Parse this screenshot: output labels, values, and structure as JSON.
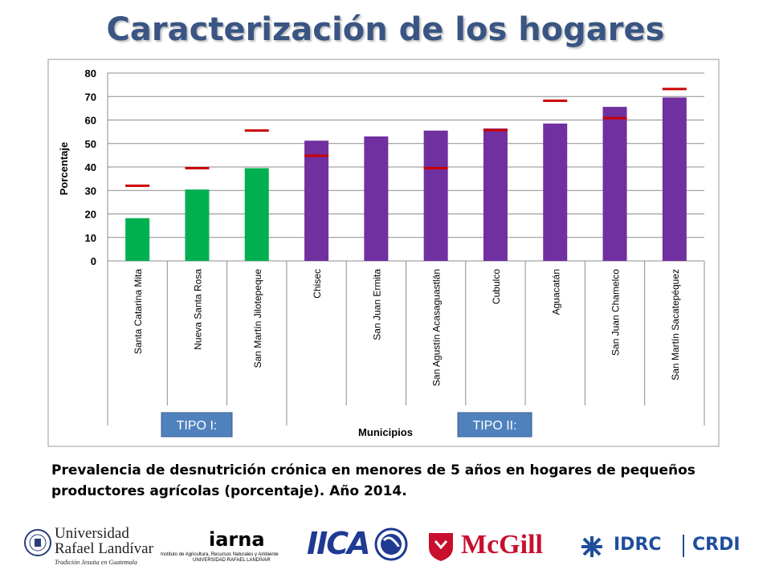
{
  "slide": {
    "title": "Caracterización de los hogares",
    "caption": "Prevalencia de desnutrición crónica en menores de 5 años en hogares de pequeños productores agrícolas (porcentaje). Año 2014."
  },
  "chart_data": {
    "type": "bar",
    "title": "",
    "xlabel": "Municipios",
    "ylabel": "Porcentaje",
    "ylim": [
      0,
      80
    ],
    "yticks": [
      0,
      10,
      20,
      30,
      40,
      50,
      60,
      70,
      80
    ],
    "grid": true,
    "categories": [
      "Santa Catarina Mita",
      "Nueva Santa Rosa",
      "San Martín Jilotepeque",
      "Chisec",
      "San Juan Ermita",
      "San Agustín Acasaguastlán",
      "Cubulco",
      "Aguacatán",
      "San Juan Chamelco",
      "San Martín Sacatepéquez"
    ],
    "series": [
      {
        "values": [
          18.2,
          30.4,
          39.5,
          51.2,
          53.0,
          55.5,
          56.4,
          58.5,
          65.6,
          69.6
        ]
      },
      {
        "values": [
          32.0,
          39.5,
          55.5,
          44.8,
          null,
          39.5,
          55.7,
          68.2,
          60.8,
          73.2
        ]
      }
    ],
    "group_labels": [
      "TIPO I:",
      "TIPO II:"
    ],
    "colors": {
      "tipo_i": "#00b050",
      "tipo_ii": "#7030a0",
      "marker": "#cc0000",
      "group_box": "#4f81bd"
    }
  },
  "logos": {
    "url_name": [
      "Universidad",
      "Rafael Landívar"
    ],
    "url_tagline": "Tradición Jesuita en Guatemala",
    "iarna_name": "iarna",
    "iarna_sub": [
      "Instituto de Agricultura, Recursos Naturales y Ambiente",
      "UNIVERSIDAD RAFAEL LANDÍVAR"
    ],
    "iica": "IICA",
    "mcgill": "McGill",
    "idrc": "IDRC",
    "crdi": "CRDI"
  }
}
